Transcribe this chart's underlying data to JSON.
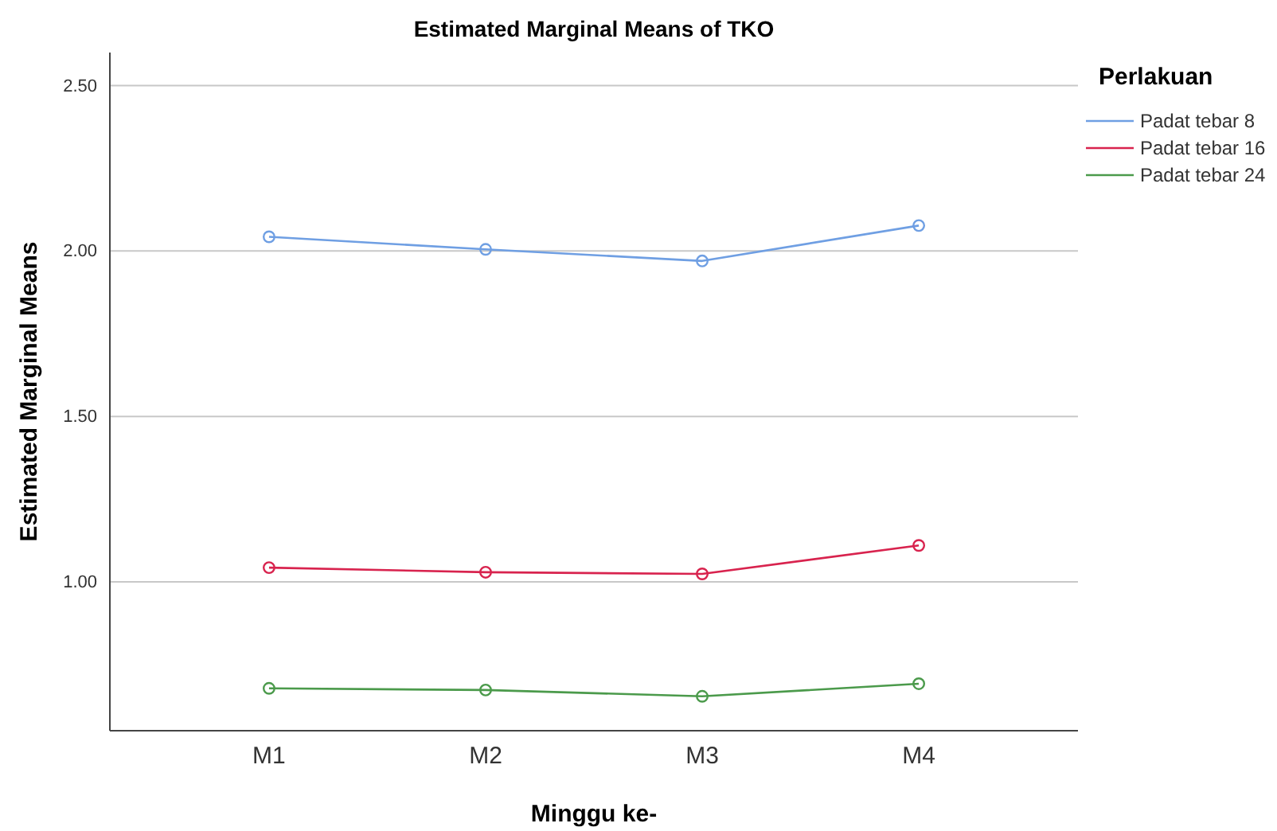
{
  "chart_data": {
    "type": "line",
    "title": "Estimated Marginal Means of TKO",
    "xlabel": "Minggu ke-",
    "ylabel": "Estimated Marginal Means",
    "legend_title": "Perlakuan",
    "categories": [
      "M1",
      "M2",
      "M3",
      "M4"
    ],
    "series": [
      {
        "name": "Padat tebar 8",
        "color": "#6f9fe3",
        "values": [
          2.043,
          2.005,
          1.97,
          2.077
        ]
      },
      {
        "name": "Padat tebar 16",
        "color": "#d8234e",
        "values": [
          1.043,
          1.029,
          1.024,
          1.11
        ]
      },
      {
        "name": "Padat tebar 24",
        "color": "#4b9a4b",
        "values": [
          0.678,
          0.673,
          0.654,
          0.692
        ]
      }
    ],
    "ylim": [
      0.55,
      2.6
    ],
    "yticks": [
      {
        "value": 1,
        "label": "1.00"
      },
      {
        "value": 1.5,
        "label": "1.50"
      },
      {
        "value": 2,
        "label": "2.00"
      },
      {
        "value": 2.5,
        "label": "2.50"
      }
    ],
    "grid": "y",
    "legend": "top right",
    "marker": "circle",
    "line_style": "solid"
  }
}
